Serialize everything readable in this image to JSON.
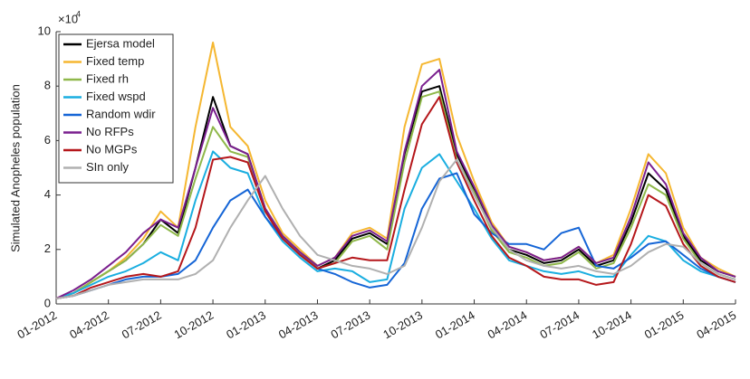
{
  "chart_data": {
    "type": "line",
    "ylabel": "Simulated Anopheles population",
    "y_multiplier": {
      "base": "×10",
      "exponent": "4"
    },
    "x": [
      "2012-01",
      "2012-02",
      "2012-03",
      "2012-04",
      "2012-05",
      "2012-06",
      "2012-07",
      "2012-08",
      "2012-09",
      "2012-10",
      "2012-11",
      "2012-12",
      "2013-01",
      "2013-02",
      "2013-03",
      "2013-04",
      "2013-05",
      "2013-06",
      "2013-07",
      "2013-08",
      "2013-09",
      "2013-10",
      "2013-11",
      "2013-12",
      "2014-01",
      "2014-02",
      "2014-03",
      "2014-04",
      "2014-05",
      "2014-06",
      "2014-07",
      "2014-08",
      "2014-09",
      "2014-10",
      "2014-11",
      "2014-12",
      "2015-01",
      "2015-02",
      "2015-03",
      "2015-04"
    ],
    "xlim": [
      "2012-01",
      "2015-04"
    ],
    "xticks": [
      {
        "value": "2012-01",
        "label": "01-2012"
      },
      {
        "value": "2012-04",
        "label": "04-2012"
      },
      {
        "value": "2012-07",
        "label": "07-2012"
      },
      {
        "value": "2012-10",
        "label": "10-2012"
      },
      {
        "value": "2013-01",
        "label": "01-2013"
      },
      {
        "value": "2013-04",
        "label": "04-2013"
      },
      {
        "value": "2013-07",
        "label": "07-2013"
      },
      {
        "value": "2013-10",
        "label": "10-2013"
      },
      {
        "value": "2014-01",
        "label": "01-2014"
      },
      {
        "value": "2014-04",
        "label": "04-2014"
      },
      {
        "value": "2014-07",
        "label": "07-2014"
      },
      {
        "value": "2014-10",
        "label": "10-2014"
      },
      {
        "value": "2015-01",
        "label": "01-2015"
      },
      {
        "value": "2015-04",
        "label": "04-2015"
      }
    ],
    "ylim": [
      0,
      10
    ],
    "yticks": [
      0,
      2,
      4,
      6,
      8,
      10
    ],
    "legend": "top-left",
    "series": [
      {
        "name": "Ejersa model",
        "color": "#000000",
        "values": [
          0.2,
          0.4,
          0.8,
          1.2,
          1.6,
          2.2,
          3.1,
          2.6,
          5.0,
          7.6,
          5.8,
          5.5,
          3.5,
          2.5,
          1.9,
          1.3,
          1.6,
          2.4,
          2.6,
          2.2,
          5.5,
          7.8,
          8.0,
          5.5,
          4.2,
          2.8,
          2.0,
          1.8,
          1.5,
          1.6,
          2.0,
          1.4,
          1.6,
          3.0,
          4.8,
          4.2,
          2.5,
          1.6,
          1.2,
          1.0
        ]
      },
      {
        "name": "Fixed temp",
        "color": "#f5b731",
        "values": [
          0.2,
          0.4,
          0.8,
          1.2,
          1.7,
          2.4,
          3.4,
          2.8,
          6.5,
          9.6,
          6.5,
          5.8,
          3.8,
          2.6,
          2.0,
          1.4,
          1.7,
          2.6,
          2.8,
          2.4,
          6.5,
          8.8,
          9.0,
          6.2,
          4.5,
          3.0,
          2.1,
          1.9,
          1.6,
          1.7,
          2.1,
          1.5,
          1.8,
          3.5,
          5.5,
          4.8,
          2.8,
          1.7,
          1.3,
          1.0
        ]
      },
      {
        "name": "Fixed rh",
        "color": "#8fb84a",
        "values": [
          0.2,
          0.4,
          0.8,
          1.2,
          1.6,
          2.2,
          2.9,
          2.5,
          4.6,
          6.5,
          5.6,
          5.4,
          3.4,
          2.4,
          1.9,
          1.3,
          1.5,
          2.3,
          2.5,
          2.0,
          5.2,
          7.6,
          7.8,
          5.3,
          4.1,
          2.7,
          1.9,
          1.7,
          1.4,
          1.5,
          1.9,
          1.3,
          1.5,
          2.8,
          4.4,
          4.0,
          2.4,
          1.5,
          1.1,
          0.9
        ]
      },
      {
        "name": "Fixed wspd",
        "color": "#1aaee0",
        "values": [
          0.2,
          0.4,
          0.7,
          1.0,
          1.2,
          1.5,
          1.9,
          1.6,
          3.8,
          5.6,
          5.0,
          4.8,
          3.2,
          2.3,
          1.7,
          1.2,
          1.3,
          1.2,
          0.8,
          0.9,
          3.5,
          5.0,
          5.5,
          4.5,
          3.5,
          2.4,
          1.6,
          1.4,
          1.2,
          1.1,
          1.2,
          1.0,
          1.0,
          1.8,
          2.5,
          2.3,
          1.6,
          1.2,
          1.0,
          0.8
        ]
      },
      {
        "name": "Random wdir",
        "color": "#1565d6",
        "values": [
          0.2,
          0.3,
          0.5,
          0.7,
          0.9,
          1.0,
          1.0,
          1.1,
          1.6,
          2.8,
          3.8,
          4.2,
          3.2,
          2.4,
          1.8,
          1.3,
          1.1,
          0.8,
          0.6,
          0.7,
          1.5,
          3.5,
          4.6,
          4.8,
          3.3,
          2.6,
          2.2,
          2.2,
          2.0,
          2.6,
          2.8,
          1.4,
          1.3,
          1.7,
          2.2,
          2.3,
          1.8,
          1.3,
          1.0,
          0.8
        ]
      },
      {
        "name": "No RFPs",
        "color": "#7a1f8e",
        "values": [
          0.2,
          0.5,
          0.9,
          1.4,
          1.9,
          2.6,
          3.1,
          2.8,
          5.0,
          7.2,
          5.8,
          5.5,
          3.5,
          2.5,
          1.9,
          1.4,
          1.7,
          2.5,
          2.7,
          2.3,
          5.6,
          8.0,
          8.6,
          5.6,
          4.3,
          2.9,
          2.1,
          1.9,
          1.6,
          1.7,
          2.1,
          1.5,
          1.7,
          3.2,
          5.2,
          4.4,
          2.6,
          1.7,
          1.2,
          1.0
        ]
      },
      {
        "name": "No MGPs",
        "color": "#b5171b",
        "values": [
          0.2,
          0.3,
          0.6,
          0.8,
          1.0,
          1.1,
          1.0,
          1.2,
          2.8,
          5.3,
          5.4,
          5.2,
          3.4,
          2.4,
          1.8,
          1.3,
          1.5,
          1.7,
          1.6,
          1.6,
          4.2,
          6.6,
          7.6,
          5.2,
          3.8,
          2.5,
          1.7,
          1.4,
          1.0,
          0.9,
          0.9,
          0.7,
          0.8,
          2.2,
          4.0,
          3.6,
          2.2,
          1.4,
          1.0,
          0.8
        ]
      },
      {
        "name": "SIn only",
        "color": "#b0b0b0",
        "values": [
          0.2,
          0.3,
          0.5,
          0.7,
          0.8,
          0.9,
          0.9,
          0.9,
          1.1,
          1.6,
          2.8,
          3.8,
          4.7,
          3.5,
          2.5,
          1.8,
          1.6,
          1.4,
          1.3,
          1.1,
          1.4,
          2.8,
          4.5,
          5.3,
          4.0,
          2.8,
          2.0,
          1.6,
          1.4,
          1.3,
          1.4,
          1.2,
          1.1,
          1.4,
          1.9,
          2.2,
          2.1,
          1.5,
          1.1,
          0.9
        ]
      }
    ]
  }
}
